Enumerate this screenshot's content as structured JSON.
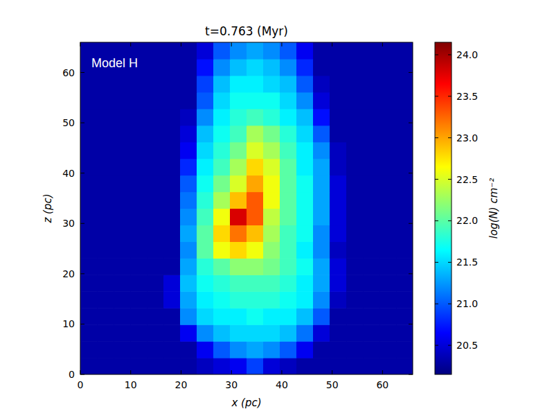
{
  "chart_data": {
    "type": "heatmap",
    "title": "t=0.763 (Myr)",
    "annotation": "Model H",
    "x_label": "x (pc)",
    "y_label": "z (pc)",
    "xlim": [
      0,
      66
    ],
    "ylim": [
      0,
      66
    ],
    "xticks": [
      0,
      10,
      20,
      30,
      40,
      50,
      60
    ],
    "yticks": [
      0,
      10,
      20,
      30,
      40,
      50,
      60
    ],
    "x_bins": [
      0,
      3.3,
      6.6,
      9.9,
      13.2,
      16.5,
      19.8,
      23.1,
      26.4,
      29.7,
      33,
      36.3,
      39.6,
      42.9,
      46.2,
      49.5,
      52.8,
      56.1,
      59.4,
      62.7,
      66
    ],
    "z_bins": [
      0,
      3.3,
      6.6,
      9.9,
      13.2,
      16.5,
      19.8,
      23.1,
      26.4,
      29.7,
      33,
      36.3,
      39.6,
      42.9,
      46.2,
      49.5,
      52.8,
      56.1,
      59.4,
      62.7,
      66
    ],
    "cells": [
      [
        20.3,
        20.3,
        20.3,
        20.3,
        20.3,
        20.3,
        20.3,
        20.4,
        20.5,
        20.6,
        20.9,
        20.5,
        20.4,
        20.3,
        20.3,
        20.3,
        20.3,
        20.3,
        20.3,
        20.3
      ],
      [
        20.3,
        20.3,
        20.3,
        20.3,
        20.3,
        20.3,
        20.3,
        20.6,
        21.0,
        21.2,
        21.3,
        21.2,
        21.0,
        20.6,
        20.3,
        20.3,
        20.3,
        20.3,
        20.3,
        20.3
      ],
      [
        20.3,
        20.3,
        20.3,
        20.3,
        20.3,
        20.3,
        20.6,
        21.2,
        21.4,
        21.5,
        21.5,
        21.5,
        21.4,
        21.1,
        20.5,
        20.3,
        20.3,
        20.3,
        20.3,
        20.3
      ],
      [
        20.3,
        20.3,
        20.3,
        20.3,
        20.3,
        20.3,
        21.2,
        21.5,
        21.6,
        21.6,
        21.7,
        21.6,
        21.6,
        21.4,
        21.0,
        20.3,
        20.3,
        20.3,
        20.3,
        20.3
      ],
      [
        20.3,
        20.3,
        20.3,
        20.3,
        20.3,
        20.5,
        21.3,
        21.6,
        21.7,
        21.8,
        21.8,
        21.8,
        21.7,
        21.6,
        21.2,
        20.4,
        20.3,
        20.3,
        20.3,
        20.3
      ],
      [
        20.3,
        20.3,
        20.3,
        20.3,
        20.3,
        20.5,
        21.4,
        21.7,
        21.8,
        21.9,
        21.9,
        21.9,
        21.8,
        21.6,
        21.3,
        20.5,
        20.3,
        20.3,
        20.3,
        20.3
      ],
      [
        20.3,
        20.3,
        20.3,
        20.3,
        20.3,
        20.3,
        21.3,
        21.8,
        22.0,
        22.2,
        22.2,
        22.1,
        21.9,
        21.7,
        21.3,
        20.5,
        20.3,
        20.3,
        20.3,
        20.3
      ],
      [
        20.3,
        20.3,
        20.3,
        20.3,
        20.3,
        20.3,
        21.2,
        22.0,
        22.6,
        22.8,
        22.6,
        22.2,
        21.9,
        21.6,
        21.2,
        20.4,
        20.3,
        20.3,
        20.3,
        20.3
      ],
      [
        20.3,
        20.3,
        20.3,
        20.3,
        20.3,
        20.3,
        21.3,
        22.0,
        22.8,
        23.2,
        22.9,
        22.3,
        21.9,
        21.7,
        21.2,
        20.5,
        20.3,
        20.3,
        20.3,
        20.3
      ],
      [
        20.3,
        20.3,
        20.3,
        20.3,
        20.3,
        20.3,
        21.2,
        21.9,
        22.6,
        23.8,
        23.3,
        22.4,
        22.0,
        21.7,
        21.3,
        20.5,
        20.3,
        20.3,
        20.3,
        20.3
      ],
      [
        20.3,
        20.3,
        20.3,
        20.3,
        20.3,
        20.3,
        21.1,
        21.8,
        22.3,
        22.9,
        23.3,
        22.6,
        22.0,
        21.7,
        21.3,
        20.5,
        20.3,
        20.3,
        20.3,
        20.3
      ],
      [
        20.3,
        20.3,
        20.3,
        20.3,
        20.3,
        20.3,
        21.0,
        21.7,
        22.1,
        22.5,
        23.0,
        22.6,
        22.0,
        21.7,
        21.3,
        20.5,
        20.3,
        20.3,
        20.3,
        20.3
      ],
      [
        20.3,
        20.3,
        20.3,
        20.3,
        20.3,
        20.3,
        20.8,
        21.6,
        21.9,
        22.3,
        22.8,
        22.5,
        22.0,
        21.6,
        21.3,
        20.4,
        20.3,
        20.3,
        20.3,
        20.3
      ],
      [
        20.3,
        20.3,
        20.3,
        20.3,
        20.3,
        20.3,
        20.6,
        21.5,
        21.8,
        22.1,
        22.5,
        22.3,
        21.9,
        21.6,
        21.2,
        20.4,
        20.3,
        20.3,
        20.3,
        20.3
      ],
      [
        20.3,
        20.3,
        20.3,
        20.3,
        20.3,
        20.3,
        20.5,
        21.4,
        21.7,
        21.9,
        22.3,
        22.1,
        21.8,
        21.5,
        21.0,
        20.3,
        20.3,
        20.3,
        20.3,
        20.3
      ],
      [
        20.3,
        20.3,
        20.3,
        20.3,
        20.3,
        20.3,
        20.4,
        21.2,
        21.6,
        21.8,
        21.9,
        21.8,
        21.6,
        21.4,
        20.7,
        20.3,
        20.3,
        20.3,
        20.3,
        20.3
      ],
      [
        20.3,
        20.3,
        20.3,
        20.3,
        20.3,
        20.3,
        20.3,
        21.0,
        21.5,
        21.7,
        21.7,
        21.7,
        21.5,
        21.2,
        20.5,
        20.3,
        20.3,
        20.3,
        20.3,
        20.3
      ],
      [
        20.3,
        20.3,
        20.3,
        20.3,
        20.3,
        20.3,
        20.3,
        20.9,
        21.4,
        21.6,
        21.6,
        21.5,
        21.4,
        21.0,
        20.4,
        20.3,
        20.3,
        20.3,
        20.3,
        20.3
      ],
      [
        20.3,
        20.3,
        20.3,
        20.3,
        20.3,
        20.3,
        20.3,
        20.7,
        21.2,
        21.4,
        21.5,
        21.4,
        21.2,
        20.8,
        20.3,
        20.3,
        20.3,
        20.3,
        20.3,
        20.3
      ],
      [
        20.3,
        20.3,
        20.3,
        20.3,
        20.3,
        20.3,
        20.3,
        20.5,
        21.0,
        21.2,
        21.3,
        21.2,
        21.0,
        20.6,
        20.3,
        20.3,
        20.3,
        20.3,
        20.3,
        20.3
      ]
    ],
    "colorbar": {
      "label": "log(N) cm⁻²",
      "range": [
        20.15,
        24.15
      ],
      "ticks": [
        20.5,
        {
          "value": 21,
          "label": "21.0"
        },
        21.5,
        {
          "value": 22,
          "label": "22.0"
        },
        22.5,
        {
          "value": 23,
          "label": "23.0"
        },
        23.5,
        {
          "value": 24,
          "label": "24.0"
        }
      ]
    }
  }
}
